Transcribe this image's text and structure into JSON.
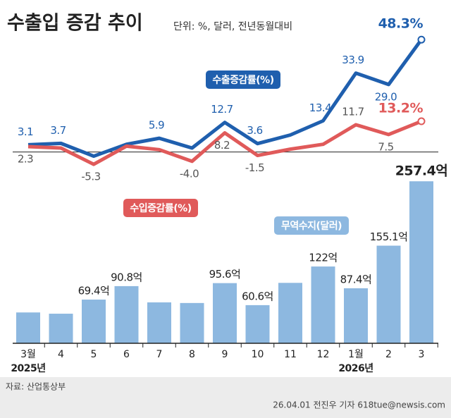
{
  "chart_data": {
    "type": "combo",
    "title": "수출입 증감 추이",
    "subtitle": "단위: %, 달러, 전년동월대비",
    "categories": [
      "3월",
      "4",
      "5",
      "6",
      "7",
      "8",
      "9",
      "10",
      "11",
      "12",
      "1월",
      "2",
      "3"
    ],
    "year_labels": [
      "2025년",
      null,
      null,
      null,
      null,
      null,
      null,
      null,
      null,
      null,
      "2026년",
      null,
      null
    ],
    "ylim": [
      -8,
      52
    ],
    "y2lim": [
      0,
      280
    ],
    "series": [
      {
        "name": "수출증감률(%)",
        "type": "line",
        "color": "#1f5fae",
        "values": [
          3.1,
          3.7,
          -1.8,
          3.3,
          5.9,
          1.7,
          12.7,
          3.6,
          7.3,
          13.4,
          33.9,
          29.0,
          48.3
        ],
        "value_labels": [
          "3.1",
          "3.7",
          null,
          null,
          "5.9",
          null,
          "12.7",
          "3.6",
          null,
          "13.4",
          "33.9",
          "29.0",
          "48.3%"
        ]
      },
      {
        "name": "수입증감률(%)",
        "type": "line",
        "color": "#e05a5a",
        "values": [
          2.3,
          1.7,
          -5.3,
          2.5,
          1.0,
          -4.0,
          8.2,
          -1.5,
          1.2,
          3.3,
          11.7,
          7.5,
          13.2
        ],
        "value_labels": [
          "2.3",
          null,
          "-5.3",
          null,
          null,
          "-4.0",
          "8.2",
          "-1.5",
          null,
          null,
          "11.7",
          "7.5",
          "13.2%"
        ]
      },
      {
        "name": "무역수지(달러)",
        "type": "bar",
        "axis": "y2",
        "color": "#8db8e0",
        "values": [
          49,
          47,
          69.4,
          90.8,
          65,
          64,
          95.6,
          60.6,
          96,
          122,
          87.4,
          155.1,
          257.4
        ],
        "value_labels": [
          null,
          null,
          "69.4억",
          "90.8억",
          null,
          null,
          "95.6억",
          "60.6억",
          null,
          "122억",
          "87.4억",
          "155.1억",
          "257.4억"
        ]
      }
    ],
    "source": "자료: 산업통상부",
    "credit": "26.04.01 전진우 기자 618tue@newsis.com"
  }
}
